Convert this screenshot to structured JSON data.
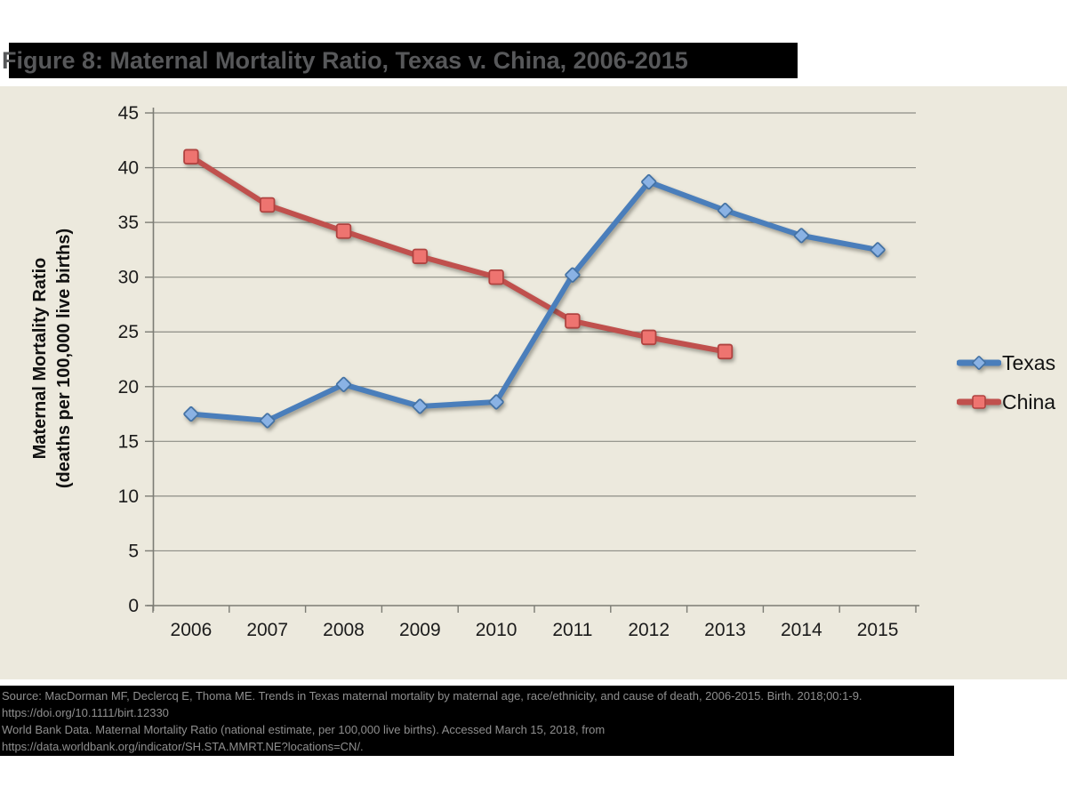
{
  "title": "Figure 8: Maternal Mortality Ratio, Texas v. China, 2006-2015",
  "chart_data": {
    "type": "line",
    "title": "Figure 8: Maternal Mortality Ratio, Texas v. China, 2006-2015",
    "ylabel_line1": "Maternal Mortality Ratio",
    "ylabel_line2": "(deaths per 100,000 live births)",
    "xlabel": "",
    "categories": [
      "2006",
      "2007",
      "2008",
      "2009",
      "2010",
      "2011",
      "2012",
      "2013",
      "2014",
      "2015"
    ],
    "series": [
      {
        "name": "China",
        "marker": "square",
        "line_color": "#c0504d",
        "marker_fill": "#ee7470",
        "marker_stroke": "#b04340",
        "values": [
          41.0,
          36.6,
          34.2,
          31.9,
          30.0,
          26.0,
          24.5,
          23.2,
          null,
          null
        ]
      },
      {
        "name": "Texas",
        "marker": "diamond",
        "line_color": "#4a7ebb",
        "marker_fill": "#8ab2e4",
        "marker_stroke": "#4472a4",
        "values": [
          17.5,
          16.9,
          20.2,
          18.2,
          18.6,
          30.2,
          38.7,
          36.1,
          33.8,
          32.5
        ]
      }
    ],
    "legend_order": [
      "Texas",
      "China"
    ],
    "legend_position": "right",
    "ylim": [
      0,
      45
    ],
    "ytick_step": 5,
    "grid": true,
    "colors": {
      "plot_background": "#ece9dd",
      "gridline": "#8d8d85",
      "axis": "#7c7c74",
      "texas_blue": "#4a7ebb",
      "china_red": "#c0504d"
    }
  },
  "source_block": {
    "lines": [
      "Source: MacDorman MF, Declercq E, Thoma ME. Trends in Texas maternal mortality by maternal age, race/ethnicity, and cause of death, 2006-2015. Birth. 2018;00:1-9.",
      "https://doi.org/10.1111/birt.12330",
      "World Bank Data. Maternal Mortality Ratio (national estimate, per 100,000 live births). Accessed March 15, 2018, from",
      "https://data.worldbank.org/indicator/SH.STA.MMRT.NE?locations=CN/."
    ]
  }
}
